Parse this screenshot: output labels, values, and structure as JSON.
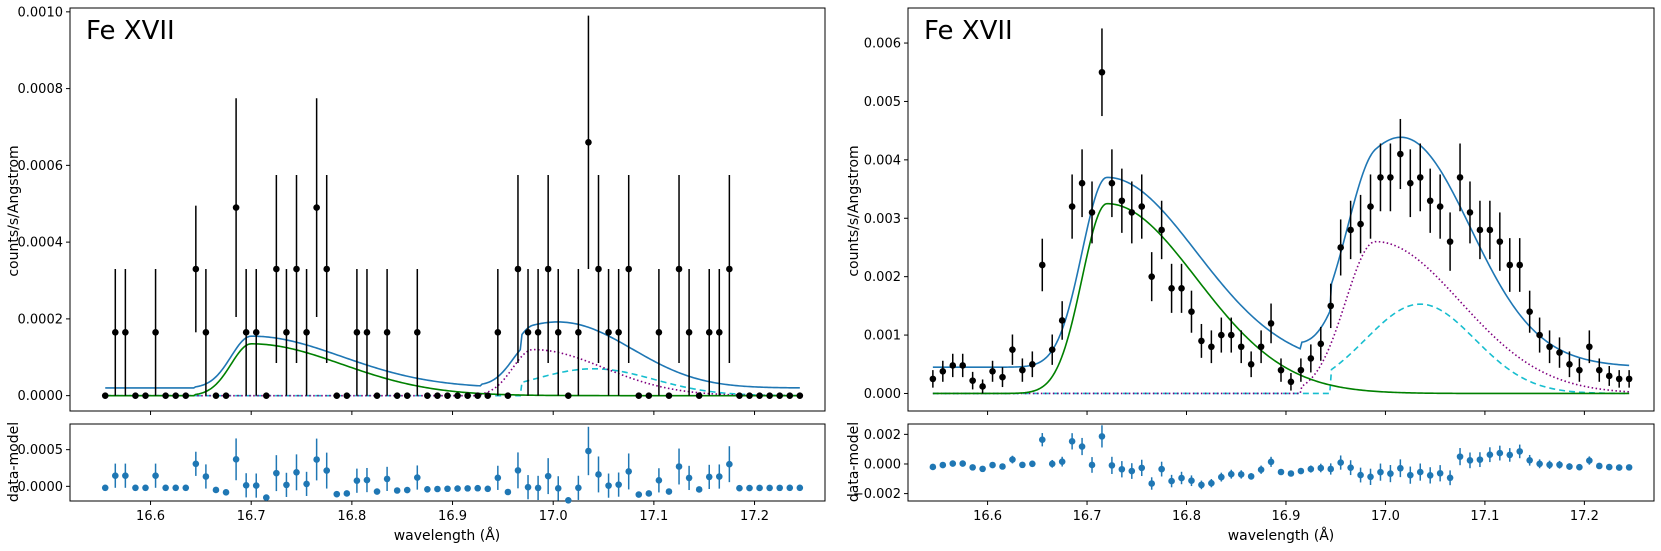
{
  "chart_data": [
    {
      "type": "scatter",
      "panel": "left-main",
      "title": "Fe XVII",
      "xlabel": "",
      "ylabel": "counts/s/Angstrom",
      "xlim": [
        16.52,
        17.27
      ],
      "ylim": [
        -4e-05,
        0.00101
      ],
      "x_ticks": [
        16.6,
        16.7,
        16.8,
        16.9,
        17.0,
        17.1,
        17.2
      ],
      "y_ticks": [
        0.0,
        0.0002,
        0.0004,
        0.0006,
        0.0008,
        0.001
      ],
      "y_tick_labels": [
        "0.0000",
        "0.0002",
        "0.0004",
        "0.0006",
        "0.0008",
        "0.0010"
      ],
      "data": {
        "x": [
          16.555,
          16.565,
          16.575,
          16.585,
          16.595,
          16.605,
          16.615,
          16.625,
          16.635,
          16.645,
          16.655,
          16.665,
          16.675,
          16.685,
          16.695,
          16.705,
          16.715,
          16.725,
          16.735,
          16.745,
          16.755,
          16.765,
          16.775,
          16.785,
          16.795,
          16.805,
          16.815,
          16.825,
          16.835,
          16.845,
          16.855,
          16.865,
          16.875,
          16.885,
          16.895,
          16.905,
          16.915,
          16.925,
          16.935,
          16.945,
          16.955,
          16.965,
          16.975,
          16.985,
          16.995,
          17.005,
          17.015,
          17.025,
          17.035,
          17.045,
          17.055,
          17.065,
          17.075,
          17.085,
          17.095,
          17.105,
          17.115,
          17.125,
          17.135,
          17.145,
          17.155,
          17.165,
          17.175,
          17.185,
          17.195,
          17.205,
          17.215,
          17.225,
          17.235,
          17.245
        ],
        "y": [
          0,
          0.000165,
          0.000165,
          0,
          0,
          0.000165,
          0,
          0,
          0,
          0.00033,
          0.000165,
          0,
          0,
          0.00049,
          0.000165,
          0.000165,
          0,
          0.00033,
          0.000165,
          0.00033,
          0.000165,
          0.00049,
          0.00033,
          0,
          0,
          0.000165,
          0.000165,
          0,
          0.000165,
          0,
          0,
          0.000165,
          0,
          0,
          0,
          0,
          0,
          0,
          0,
          0.000165,
          0,
          0.00033,
          0.000165,
          0.000165,
          0.00033,
          0.000165,
          0,
          0.000165,
          0.00066,
          0.00033,
          0.000165,
          0.000165,
          0.00033,
          0,
          0,
          0.000165,
          0,
          0.00033,
          0.000165,
          0,
          0.000165,
          0.000165,
          0.00033,
          0,
          0,
          0,
          0,
          0,
          0,
          0
        ],
        "yerr": [
          0,
          0.000165,
          0.000165,
          0,
          0,
          0.000165,
          0,
          0,
          0,
          0.000165,
          0.000165,
          0,
          0,
          0.000285,
          0.000165,
          0.000165,
          0,
          0.000245,
          0.000165,
          0.000245,
          0.000165,
          0.000285,
          0.000245,
          0,
          0,
          0.000165,
          0.000165,
          0,
          0.000165,
          0,
          0,
          0.000165,
          0,
          0,
          0,
          0,
          0,
          0,
          0,
          0.000165,
          0,
          0.000245,
          0.000165,
          0.000165,
          0.000245,
          0.000165,
          0,
          0.000165,
          0.00033,
          0.000245,
          0.000165,
          0.000165,
          0.000245,
          0,
          0,
          0.000165,
          0,
          0.000245,
          0.000165,
          0,
          0.000165,
          0.000165,
          0.000245,
          0,
          0,
          0,
          0,
          0,
          0,
          0
        ]
      },
      "model": {
        "baseline": 2e-05,
        "line1": {
          "center": 16.7,
          "amp": 0.000135,
          "rise_sigma": 0.02,
          "tail_sigma": 0.09,
          "start": 16.643
        },
        "line2": {
          "center": 16.98,
          "amp": 0.00012,
          "rise_sigma": 0.02,
          "tail_sigma": 0.07,
          "start": 16.928
        },
        "line3": {
          "center": 17.04,
          "amp": 7e-05,
          "sigma": 0.06,
          "start": 16.968
        }
      },
      "series": [
        {
          "name": "total model",
          "color": "#1f77b4",
          "style": "solid"
        },
        {
          "name": "line 1",
          "color": "#008000",
          "style": "solid"
        },
        {
          "name": "line 2",
          "color": "#800080",
          "style": "dotted"
        },
        {
          "name": "line 3",
          "color": "#17becf",
          "style": "dashed"
        }
      ]
    },
    {
      "type": "scatter",
      "panel": "left-residual",
      "xlabel": "wavelength (Å)",
      "ylabel": "data-model",
      "xlim": [
        16.52,
        17.27
      ],
      "ylim": [
        -0.0002,
        0.00085
      ],
      "x_ticks": [
        16.6,
        16.7,
        16.8,
        16.9,
        17.0,
        17.1,
        17.2
      ],
      "x_tick_labels": [
        "16.6",
        "16.7",
        "16.8",
        "16.9",
        "17.0",
        "17.1",
        "17.2"
      ],
      "y_ticks": [
        0.0,
        0.0005
      ],
      "y_tick_labels": [
        "0.0000",
        "0.0005"
      ],
      "color": "#1f77b4"
    },
    {
      "type": "scatter",
      "panel": "right-main",
      "title": "Fe XVII",
      "xlabel": "",
      "ylabel": "counts/s/Angstrom",
      "xlim": [
        16.52,
        17.27
      ],
      "ylim": [
        -0.0003,
        0.0066
      ],
      "x_ticks": [
        16.6,
        16.7,
        16.8,
        16.9,
        17.0,
        17.1,
        17.2
      ],
      "y_ticks": [
        0.0,
        0.001,
        0.002,
        0.003,
        0.004,
        0.005,
        0.006
      ],
      "y_tick_labels": [
        "0.000",
        "0.001",
        "0.002",
        "0.003",
        "0.004",
        "0.005",
        "0.006"
      ],
      "data": {
        "x": [
          16.545,
          16.555,
          16.565,
          16.575,
          16.585,
          16.595,
          16.605,
          16.615,
          16.625,
          16.635,
          16.645,
          16.655,
          16.665,
          16.675,
          16.685,
          16.695,
          16.705,
          16.715,
          16.725,
          16.735,
          16.745,
          16.755,
          16.765,
          16.775,
          16.785,
          16.795,
          16.805,
          16.815,
          16.825,
          16.835,
          16.845,
          16.855,
          16.865,
          16.875,
          16.885,
          16.895,
          16.905,
          16.915,
          16.925,
          16.935,
          16.945,
          16.955,
          16.965,
          16.975,
          16.985,
          16.995,
          17.005,
          17.015,
          17.025,
          17.035,
          17.045,
          17.055,
          17.065,
          17.075,
          17.085,
          17.095,
          17.105,
          17.115,
          17.125,
          17.135,
          17.145,
          17.155,
          17.165,
          17.175,
          17.185,
          17.195,
          17.205,
          17.215,
          17.225,
          17.235,
          17.245
        ],
        "y": [
          0.00025,
          0.00038,
          0.00048,
          0.00048,
          0.00022,
          0.00012,
          0.00038,
          0.00028,
          0.00075,
          0.0004,
          0.0005,
          0.0022,
          0.00075,
          0.00125,
          0.0032,
          0.0036,
          0.0031,
          0.0055,
          0.0036,
          0.0033,
          0.0031,
          0.0032,
          0.002,
          0.0028,
          0.0018,
          0.0018,
          0.0014,
          0.0009,
          0.0008,
          0.001,
          0.001,
          0.0008,
          0.0005,
          0.0008,
          0.0012,
          0.0004,
          0.0002,
          0.0004,
          0.0006,
          0.00085,
          0.0015,
          0.0025,
          0.0028,
          0.0029,
          0.0032,
          0.0037,
          0.0037,
          0.0041,
          0.0036,
          0.0037,
          0.0033,
          0.0032,
          0.0026,
          0.0037,
          0.0031,
          0.0028,
          0.0028,
          0.0026,
          0.0022,
          0.0022,
          0.0014,
          0.001,
          0.0008,
          0.0007,
          0.0005,
          0.0004,
          0.0008,
          0.0004,
          0.0003,
          0.00025,
          0.00025
        ],
        "yerr": [
          0.00015,
          0.00018,
          0.0002,
          0.0002,
          0.00015,
          0.00012,
          0.00018,
          0.00017,
          0.00026,
          0.0002,
          0.00022,
          0.00045,
          0.00026,
          0.00033,
          0.00055,
          0.00058,
          0.00053,
          0.00075,
          0.00058,
          0.00055,
          0.00053,
          0.00055,
          0.00042,
          0.0005,
          0.00042,
          0.00042,
          0.00036,
          0.00029,
          0.00028,
          0.0003,
          0.0003,
          0.00028,
          0.00022,
          0.00028,
          0.00034,
          0.0002,
          0.00015,
          0.0002,
          0.00024,
          0.00029,
          0.00038,
          0.00048,
          0.0005,
          0.0005,
          0.00055,
          0.00058,
          0.00058,
          0.0006,
          0.00058,
          0.00058,
          0.00055,
          0.00055,
          0.0005,
          0.00058,
          0.00053,
          0.0005,
          0.0005,
          0.0005,
          0.00046,
          0.00046,
          0.00036,
          0.0003,
          0.00028,
          0.00026,
          0.00022,
          0.0002,
          0.00028,
          0.0002,
          0.00017,
          0.00015,
          0.00015
        ]
      },
      "model": {
        "baseline": 0.00045,
        "line1": {
          "center": 16.72,
          "amp": 0.00325,
          "rise_sigma": 0.025,
          "tail_sigma": 0.09,
          "start": 16.6
        },
        "line2": {
          "center": 16.99,
          "amp": 0.0026,
          "rise_sigma": 0.03,
          "tail_sigma": 0.085,
          "start": 16.915
        },
        "line3": {
          "center": 17.035,
          "amp": 0.00153,
          "sigma": 0.055,
          "start": 16.945
        }
      },
      "series": [
        {
          "name": "total model",
          "color": "#1f77b4",
          "style": "solid"
        },
        {
          "name": "line 1",
          "color": "#008000",
          "style": "solid"
        },
        {
          "name": "line 2",
          "color": "#800080",
          "style": "dotted"
        },
        {
          "name": "line 3",
          "color": "#17becf",
          "style": "dashed"
        }
      ]
    },
    {
      "type": "scatter",
      "panel": "right-residual",
      "xlabel": "wavelength (Å)",
      "ylabel": "data-model",
      "xlim": [
        16.52,
        17.27
      ],
      "ylim": [
        -0.0025,
        0.0027
      ],
      "x_ticks": [
        16.6,
        16.7,
        16.8,
        16.9,
        17.0,
        17.1,
        17.2
      ],
      "x_tick_labels": [
        "16.6",
        "16.7",
        "16.8",
        "16.9",
        "17.0",
        "17.1",
        "17.2"
      ],
      "y_ticks": [
        -0.002,
        0.0,
        0.002
      ],
      "y_tick_labels": [
        "−0.002",
        "0.000",
        "0.002"
      ],
      "color": "#1f77b4"
    }
  ]
}
